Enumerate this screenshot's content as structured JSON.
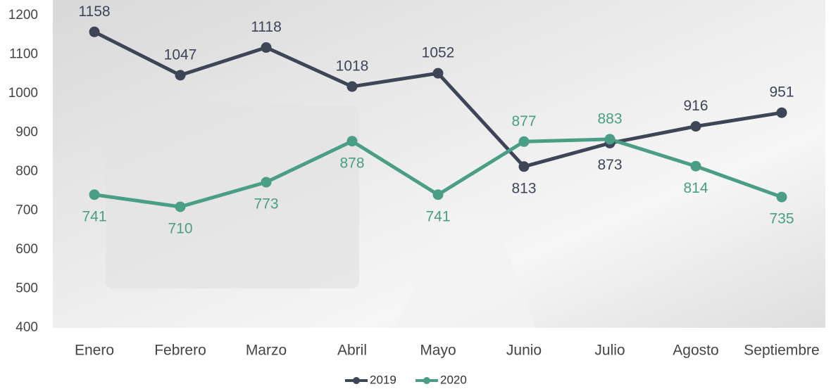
{
  "chart_data": {
    "type": "line",
    "categories": [
      "Enero",
      "Febrero",
      "Marzo",
      "Abril",
      "Mayo",
      "Junio",
      "Julio",
      "Agosto",
      "Septiembre"
    ],
    "series": [
      {
        "name": "2019",
        "color": "#3d4556",
        "values": [
          1158,
          1047,
          1118,
          1018,
          1052,
          813,
          873,
          916,
          951
        ]
      },
      {
        "name": "2020",
        "color": "#4a9e85",
        "values": [
          741,
          710,
          773,
          878,
          741,
          877,
          883,
          814,
          735
        ]
      }
    ],
    "ylim": [
      400,
      1200
    ],
    "yticks": [
      400,
      500,
      600,
      700,
      800,
      900,
      1000,
      1100,
      1200
    ],
    "legend": "bottom"
  }
}
